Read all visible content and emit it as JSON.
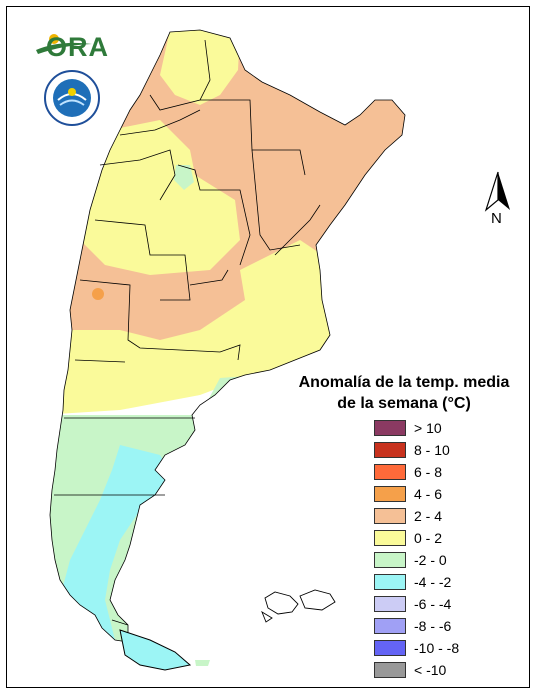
{
  "logos": {
    "ora_text": "ORA",
    "ora_icon": "sun-swoosh-logo-icon",
    "smn_icon": "weather-service-seal-icon"
  },
  "north_arrow": {
    "label": "N",
    "icon": "north-arrow-icon"
  },
  "legend": {
    "title_line1": "Anomalía de la temp. media",
    "title_line2": "de la semana (°C)",
    "items": [
      {
        "label": "> 10",
        "color": "#8b3a62"
      },
      {
        "label": "8 - 10",
        "color": "#c8321e"
      },
      {
        "label": "6 - 8",
        "color": "#ff6a3a"
      },
      {
        "label": "4 - 6",
        "color": "#f5a04a"
      },
      {
        "label": "2 - 4",
        "color": "#f5c096"
      },
      {
        "label": "0 - 2",
        "color": "#fafa9a"
      },
      {
        "label": "-2 - 0",
        "color": "#c8f5c8"
      },
      {
        "label": "-4 - -2",
        "color": "#9cf5f5"
      },
      {
        "label": "-6 - -4",
        "color": "#ccccf5"
      },
      {
        "label": "-8 - -6",
        "color": "#a0a0f5"
      },
      {
        "label": "-10 - -8",
        "color": "#6464f5"
      },
      {
        "label": "< -10",
        "color": "#999999"
      }
    ]
  },
  "map": {
    "colors": {
      "warm": "#f5c096",
      "mild": "#fafa9a",
      "cool": "#c8f5c8",
      "cold": "#9cf5f5",
      "hot_spot": "#f5a04a",
      "boundary": "#000000"
    }
  }
}
